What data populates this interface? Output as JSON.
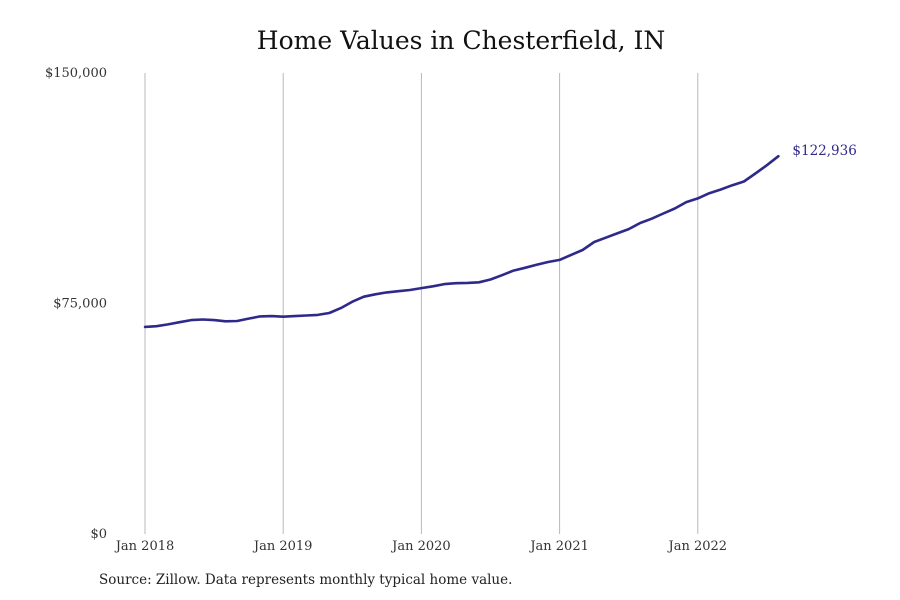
{
  "source_note": "Source: Zillow. Data represents monthly typical home value.",
  "chart_data": {
    "type": "line",
    "title": "Home Values in Chesterfield, IN",
    "xlabel": "",
    "ylabel": "",
    "ylim": [
      0,
      150000
    ],
    "y_ticks": [
      {
        "value": 0,
        "label": "$0"
      },
      {
        "value": 75000,
        "label": "$75,000"
      },
      {
        "value": 150000,
        "label": "$150,000"
      }
    ],
    "x_ticks": [
      {
        "value": "2018-01",
        "label": "Jan 2018"
      },
      {
        "value": "2019-01",
        "label": "Jan 2019"
      },
      {
        "value": "2020-01",
        "label": "Jan 2020"
      },
      {
        "value": "2021-01",
        "label": "Jan 2021"
      },
      {
        "value": "2022-01",
        "label": "Jan 2022"
      }
    ],
    "x_range": [
      "2018-01",
      "2023-01"
    ],
    "grid": "vertical",
    "line_color": "#2e2a8a",
    "end_label": "$122,936",
    "series": [
      {
        "x": [
          "2018-01",
          "2018-02",
          "2018-03",
          "2018-04",
          "2018-05",
          "2018-06",
          "2018-07",
          "2018-08",
          "2018-09",
          "2018-10",
          "2018-11",
          "2018-12",
          "2019-01",
          "2019-02",
          "2019-03",
          "2019-04",
          "2019-05",
          "2019-06",
          "2019-07",
          "2019-08",
          "2019-09",
          "2019-10",
          "2019-11",
          "2019-12",
          "2020-01",
          "2020-02",
          "2020-03",
          "2020-04",
          "2020-05",
          "2020-06",
          "2020-07",
          "2020-08",
          "2020-09",
          "2020-10",
          "2020-11",
          "2020-12",
          "2021-01",
          "2021-02",
          "2021-03",
          "2021-04",
          "2021-05",
          "2021-06",
          "2021-07",
          "2021-08",
          "2021-09",
          "2021-10",
          "2021-11",
          "2021-12",
          "2022-01",
          "2022-02",
          "2022-03",
          "2022-04",
          "2022-05",
          "2022-06",
          "2022-07",
          "2022-08"
        ],
        "values": [
          67400,
          67600,
          68200,
          68900,
          69600,
          69800,
          69600,
          69200,
          69300,
          70100,
          70800,
          70900,
          70700,
          70900,
          71100,
          71300,
          71900,
          73500,
          75600,
          77200,
          78000,
          78600,
          79000,
          79400,
          80000,
          80600,
          81300,
          81600,
          81700,
          81900,
          82800,
          84200,
          85700,
          86600,
          87600,
          88500,
          89200,
          90800,
          92400,
          95000,
          96400,
          97800,
          99200,
          101200,
          102600,
          104300,
          105900,
          108000,
          109200,
          110900,
          112100,
          113500,
          114700,
          117300,
          120000,
          122936
        ]
      }
    ]
  }
}
